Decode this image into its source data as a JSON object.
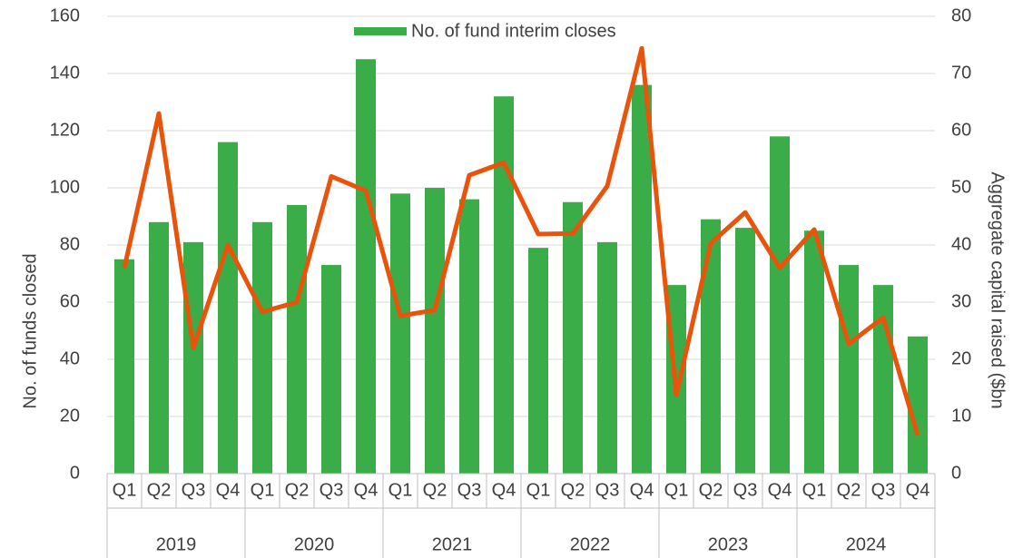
{
  "chart_data": {
    "type": "bar_line",
    "y_label": "No. of funds closed",
    "y2_label": "Aggregate capital raised ($bn",
    "categories": [
      "Q1",
      "Q2",
      "Q3",
      "Q4",
      "Q1",
      "Q2",
      "Q3",
      "Q4",
      "Q1",
      "Q2",
      "Q3",
      "Q4",
      "Q1",
      "Q2",
      "Q3",
      "Q4",
      "Q1",
      "Q2",
      "Q3",
      "Q4",
      "Q1",
      "Q2",
      "Q3",
      "Q4"
    ],
    "years": [
      "2019",
      "2020",
      "2021",
      "2022",
      "2023",
      "2024"
    ],
    "series": [
      {
        "name": "No. of fund interim closes",
        "type": "bar",
        "color": "#3aad48",
        "values": [
          75,
          88,
          81,
          116,
          88,
          94,
          73,
          145,
          98,
          100,
          96,
          132,
          79,
          95,
          81,
          136,
          66,
          89,
          86,
          118,
          85,
          73,
          66,
          48
        ]
      },
      {
        "type": "line",
        "axis": "y2",
        "color": "#e8540c",
        "values": [
          36,
          63,
          22,
          40,
          28.3,
          30,
          52,
          49.5,
          27.6,
          28.6,
          52.2,
          54.4,
          41.9,
          42,
          50.3,
          74.4,
          13.8,
          40.3,
          45.7,
          36,
          42.7,
          22.7,
          27.3,
          6.7
        ]
      }
    ],
    "ylim": [
      0,
      160
    ],
    "yticks": [
      0,
      20,
      40,
      60,
      80,
      100,
      120,
      140,
      160
    ],
    "y2lim": [
      0,
      80
    ],
    "y2ticks": [
      0,
      10,
      20,
      30,
      40,
      50,
      60,
      70,
      80
    ],
    "grid": true,
    "legend": "top"
  }
}
